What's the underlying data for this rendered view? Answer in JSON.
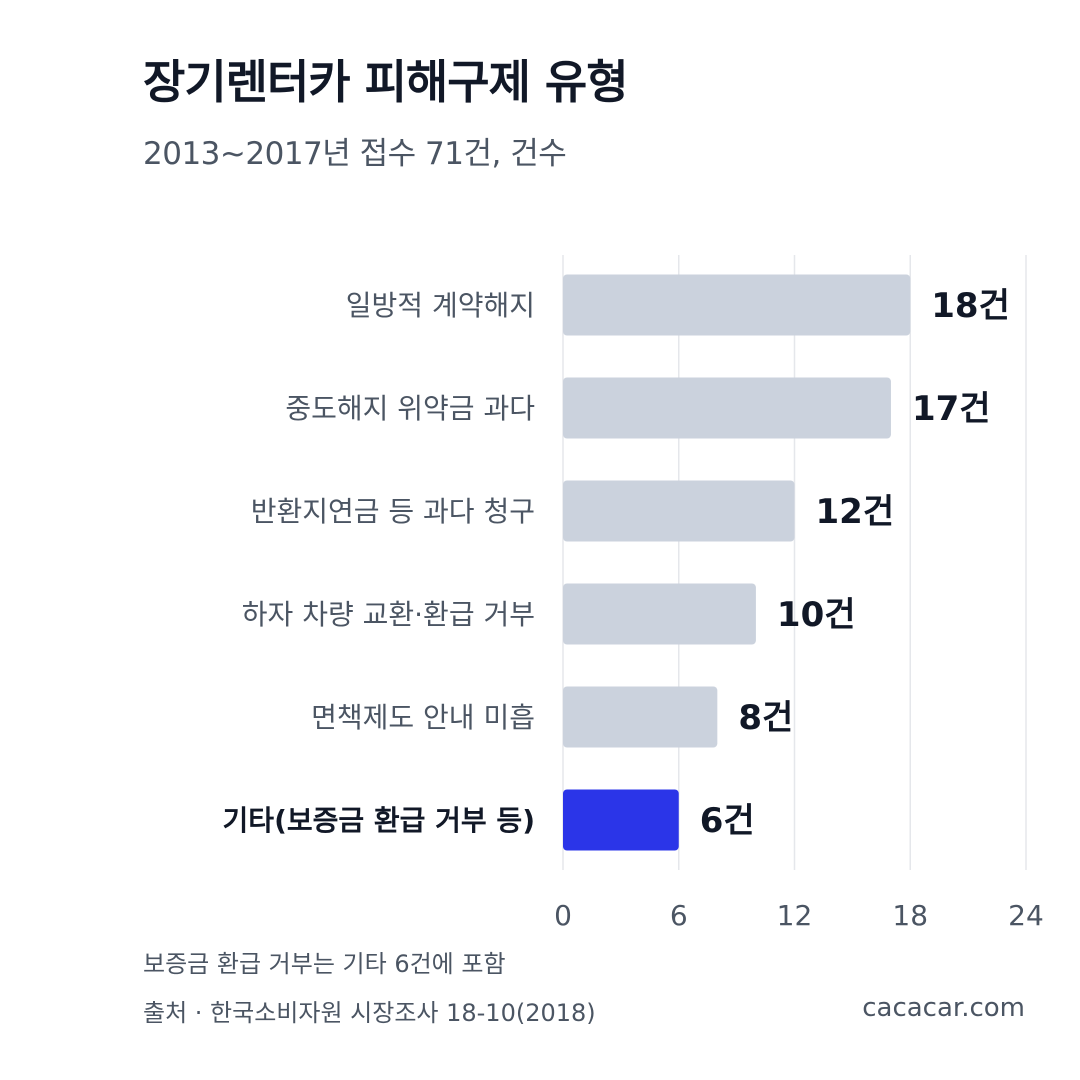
{
  "chart_data": {
    "type": "bar",
    "orientation": "horizontal",
    "title": "장기렌터카 피해구제 유형",
    "subtitle": "2013~2017년 접수 71건, 건수",
    "categories": [
      "일방적 계약해지",
      "중도해지 위약금 과다",
      "반환지연금 등 과다 청구",
      "하자 차량 교환·환급 거부",
      "면책제도 안내 미흡",
      "기타(보증금 환급 거부 등)"
    ],
    "values": [
      18,
      17,
      12,
      10,
      8,
      6
    ],
    "value_labels": [
      "18건",
      "17건",
      "12건",
      "10건",
      "8건",
      "6건"
    ],
    "highlight_index": 5,
    "xlim": [
      0,
      24
    ],
    "xticks": [
      "0",
      "6",
      "12",
      "18",
      "24"
    ],
    "grid": true,
    "colors": {
      "bar": "#cbd2dd",
      "highlight": "#2b35e8",
      "grid": "#e5e7eb",
      "text_primary": "#111827",
      "text_secondary": "#4b5563"
    }
  },
  "footer": {
    "note": "보증금 환급 거부는 기타 6건에 포함",
    "source": "출처 · 한국소비자원 시장조사 18-10(2018)",
    "credit": "cacacar.com"
  }
}
